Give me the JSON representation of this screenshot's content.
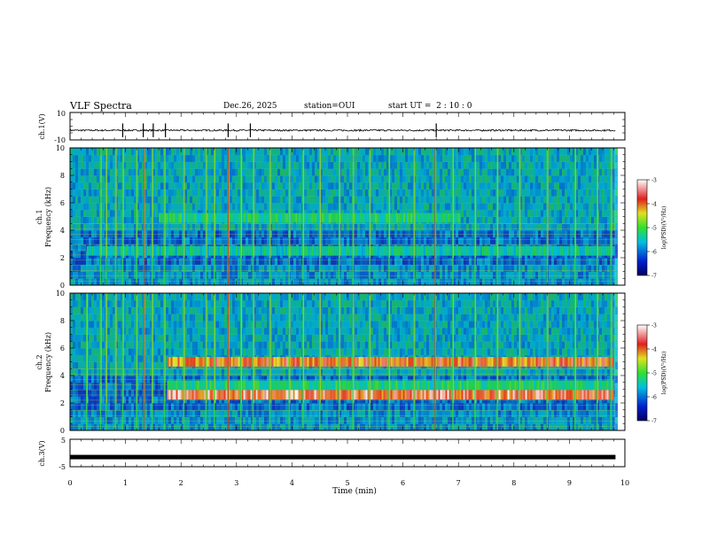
{
  "header": {
    "title": "VLF Spectra",
    "date": "Dec.26, 2025",
    "station": "station=OUI",
    "start_label": "start  UT =",
    "start_time": "2 : 10 : 0"
  },
  "chart_data": [
    {
      "id": "ch1-waveform",
      "type": "line",
      "ylabel": "ch.1(V)",
      "ylim": [
        -10,
        10
      ],
      "yticks": [
        "10",
        "-10"
      ],
      "baseline": -3,
      "noise_amplitude": 0.6,
      "spikes_min": [
        0.95,
        1.32,
        1.5,
        1.72,
        2.85,
        3.25,
        6.6
      ],
      "xlim": [
        0,
        10
      ],
      "data_end": 9.83
    },
    {
      "id": "ch1-spectrogram",
      "type": "heatmap",
      "ylabel_line1": "ch.1",
      "ylabel_line2": "Frequency  (kHz)",
      "ylim": [
        0,
        10
      ],
      "yticks": [
        "0",
        "2",
        "4",
        "6",
        "8",
        "10"
      ],
      "bands_khz": [
        {
          "center": 4.9,
          "from_min": 1.6,
          "to_min": 7.0,
          "level": 0.5
        },
        {
          "center": 2.5,
          "from_min": 0.3,
          "to_min": 9.8,
          "level": 0.45
        }
      ],
      "spike_times_min": [
        0.55,
        0.65,
        0.82,
        0.95,
        1.2,
        1.33,
        1.48,
        1.7,
        2.05,
        2.45,
        2.6,
        2.85,
        3.08,
        3.3,
        3.6,
        3.95,
        4.2,
        4.5,
        4.85,
        5.1,
        5.4,
        5.75,
        6.2,
        6.58,
        6.9,
        7.3,
        7.7,
        8.1,
        8.6,
        9.1,
        9.5,
        9.75
      ]
    },
    {
      "id": "ch2-spectrogram",
      "type": "heatmap",
      "ylabel_line1": "ch.2",
      "ylabel_line2": "Frequency  (kHz)",
      "ylim": [
        0,
        10
      ],
      "yticks": [
        "0",
        "2",
        "4",
        "6",
        "8",
        "10"
      ],
      "bands_khz": [
        {
          "center": 5.0,
          "from_min": 1.75,
          "to_min": 9.8,
          "level": 0.85
        },
        {
          "center": 2.6,
          "from_min": 1.75,
          "to_min": 9.8,
          "level": 0.9
        },
        {
          "center": 3.3,
          "from_min": 1.75,
          "to_min": 9.8,
          "level": 0.5
        }
      ],
      "spike_times_min": [
        0.3,
        0.55,
        0.65,
        0.82,
        0.95,
        1.2,
        1.33,
        1.48,
        1.7,
        2.05,
        2.45,
        2.6,
        2.85,
        3.08,
        3.3,
        3.6,
        3.95,
        4.2,
        4.5,
        4.85,
        5.1,
        5.4,
        5.75,
        6.2,
        6.58,
        6.9,
        7.3,
        7.7,
        8.1,
        8.6,
        9.1,
        9.5,
        9.75
      ]
    },
    {
      "id": "ch3-waveform",
      "type": "line",
      "ylabel": "ch.3(V)",
      "ylim": [
        -5,
        5
      ],
      "yticks": [
        "5",
        "-5"
      ],
      "baseline": -1.5,
      "xlim": [
        0,
        10
      ],
      "data_end": 9.83
    }
  ],
  "time_axis": {
    "xlabel": "Time  (min)",
    "ticks": [
      "0",
      "1",
      "2",
      "3",
      "4",
      "5",
      "6",
      "7",
      "8",
      "9",
      "10"
    ]
  },
  "colorbar": {
    "label": "log(PSD)(V²/Hz)",
    "range": [
      -7,
      -3
    ],
    "ticks": [
      "-3",
      "-4",
      "-5",
      "-6",
      "-7"
    ]
  },
  "colors": {
    "background_noise": "#0a2a8a",
    "band": "#f0e020",
    "spike": "#22c040",
    "hot": "#e02020"
  }
}
